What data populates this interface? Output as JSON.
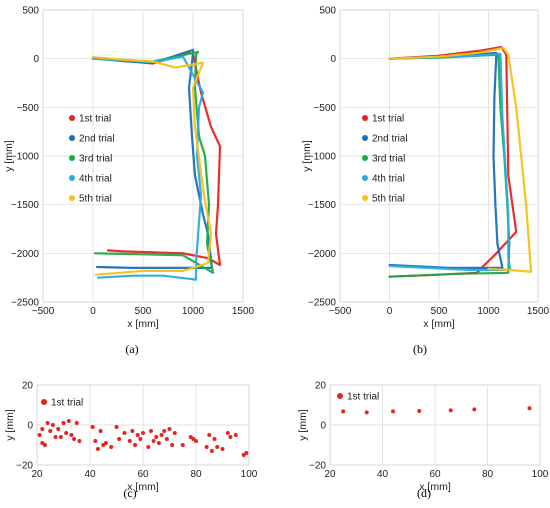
{
  "chart_data": [
    {
      "id": "a",
      "panel_label": "(a)",
      "type": "line",
      "xlabel": "x [mm]",
      "ylabel": "y [mm]",
      "xlim": [
        -500,
        1500
      ],
      "ylim": [
        -2500,
        500
      ],
      "xticks": [
        "−500",
        "0",
        "500",
        "1000",
        "1500"
      ],
      "xtick_values": [
        -500,
        0,
        500,
        1000,
        1500
      ],
      "yticks": [
        "500",
        "0",
        "−500",
        "−1000",
        "−1500",
        "−2000",
        "−2500"
      ],
      "ytick_values": [
        500,
        0,
        -500,
        -1000,
        -1500,
        -2000,
        -2500
      ],
      "grid": true,
      "legend": "left",
      "series": [
        {
          "name": "1st trial",
          "color": "#e8231f",
          "points": [
            [
              0,
              10
            ],
            [
              300,
              -20
            ],
            [
              600,
              -50
            ],
            [
              950,
              60
            ],
            [
              1000,
              50
            ],
            [
              1080,
              -350
            ],
            [
              1180,
              -700
            ],
            [
              1270,
              -900
            ],
            [
              1250,
              -1500
            ],
            [
              1230,
              -1800
            ],
            [
              1270,
              -2120
            ],
            [
              1150,
              -2050
            ],
            [
              900,
              -2000
            ],
            [
              600,
              -1990
            ],
            [
              300,
              -1980
            ],
            [
              150,
              -1970
            ]
          ]
        },
        {
          "name": "2nd trial",
          "color": "#1f6db5",
          "points": [
            [
              0,
              5
            ],
            [
              300,
              -25
            ],
            [
              600,
              -45
            ],
            [
              1000,
              90
            ],
            [
              1000,
              50
            ],
            [
              960,
              -300
            ],
            [
              990,
              -800
            ],
            [
              1020,
              -1200
            ],
            [
              1100,
              -1600
            ],
            [
              1150,
              -1800
            ],
            [
              1190,
              -2150
            ],
            [
              1000,
              -2150
            ],
            [
              700,
              -2150
            ],
            [
              400,
              -2150
            ],
            [
              40,
              -2140
            ]
          ]
        },
        {
          "name": "3rd trial",
          "color": "#1aaa48",
          "points": [
            [
              0,
              0
            ],
            [
              300,
              -20
            ],
            [
              600,
              -30
            ],
            [
              1050,
              70
            ],
            [
              1030,
              40
            ],
            [
              1020,
              -300
            ],
            [
              1060,
              -800
            ],
            [
              1120,
              -1000
            ],
            [
              1160,
              -1500
            ],
            [
              1140,
              -1900
            ],
            [
              1200,
              -2200
            ],
            [
              900,
              -2020
            ],
            [
              500,
              -2010
            ],
            [
              20,
              -2000
            ]
          ]
        },
        {
          "name": "4th trial",
          "color": "#29abe2",
          "points": [
            [
              0,
              0
            ],
            [
              300,
              -15
            ],
            [
              600,
              -35
            ],
            [
              900,
              20
            ],
            [
              1100,
              -350
            ],
            [
              1060,
              -500
            ],
            [
              1040,
              -1000
            ],
            [
              1080,
              -1400
            ],
            [
              1030,
              -2100
            ],
            [
              1030,
              -2270
            ],
            [
              700,
              -2230
            ],
            [
              400,
              -2230
            ],
            [
              50,
              -2250
            ]
          ]
        },
        {
          "name": "5th trial",
          "color": "#f5c017",
          "points": [
            [
              0,
              15
            ],
            [
              300,
              -10
            ],
            [
              600,
              -30
            ],
            [
              820,
              -90
            ],
            [
              1000,
              -60
            ],
            [
              1100,
              -40
            ],
            [
              1000,
              -300
            ],
            [
              1020,
              -700
            ],
            [
              1070,
              -1100
            ],
            [
              1110,
              -1400
            ],
            [
              1180,
              -1800
            ],
            [
              1150,
              -2100
            ],
            [
              900,
              -2180
            ],
            [
              500,
              -2180
            ],
            [
              30,
              -2220
            ]
          ]
        }
      ]
    },
    {
      "id": "b",
      "panel_label": "(b)",
      "type": "line",
      "xlabel": "x [mm]",
      "ylabel": "y [mm]",
      "xlim": [
        -500,
        1500
      ],
      "ylim": [
        -2500,
        500
      ],
      "xticks": [
        "−500",
        "0",
        "500",
        "1000",
        "1500"
      ],
      "xtick_values": [
        -500,
        0,
        500,
        1000,
        1500
      ],
      "yticks": [
        "500",
        "0",
        "−500",
        "−1000",
        "−1500",
        "−2000",
        "−2500"
      ],
      "ytick_values": [
        500,
        0,
        -500,
        -1000,
        -1500,
        -2000,
        -2500
      ],
      "grid": true,
      "legend": "right",
      "series": [
        {
          "name": "1st trial",
          "color": "#e8231f",
          "points": [
            [
              0,
              0
            ],
            [
              500,
              30
            ],
            [
              900,
              80
            ],
            [
              1130,
              120
            ],
            [
              1180,
              40
            ],
            [
              1200,
              -1200
            ],
            [
              1280,
              -1780
            ],
            [
              1080,
              -2000
            ],
            [
              880,
              -2200
            ],
            [
              500,
              -2220
            ],
            [
              0,
              -2240
            ]
          ]
        },
        {
          "name": "2nd trial",
          "color": "#1f6db5",
          "points": [
            [
              0,
              0
            ],
            [
              500,
              20
            ],
            [
              850,
              40
            ],
            [
              1080,
              60
            ],
            [
              1060,
              -400
            ],
            [
              1050,
              -1000
            ],
            [
              1070,
              -1500
            ],
            [
              1090,
              -1900
            ],
            [
              1140,
              -2150
            ],
            [
              600,
              -2150
            ],
            [
              0,
              -2120
            ]
          ]
        },
        {
          "name": "3rd trial",
          "color": "#1aaa48",
          "points": [
            [
              0,
              0
            ],
            [
              500,
              10
            ],
            [
              900,
              30
            ],
            [
              1100,
              40
            ],
            [
              1120,
              -500
            ],
            [
              1160,
              -1000
            ],
            [
              1190,
              -1500
            ],
            [
              1210,
              -1900
            ],
            [
              1200,
              -2200
            ],
            [
              700,
              -2210
            ],
            [
              0,
              -2240
            ]
          ]
        },
        {
          "name": "4th trial",
          "color": "#29abe2",
          "points": [
            [
              0,
              0
            ],
            [
              500,
              15
            ],
            [
              900,
              30
            ],
            [
              1120,
              50
            ],
            [
              1140,
              -600
            ],
            [
              1170,
              -1100
            ],
            [
              1200,
              -1600
            ],
            [
              1200,
              -2050
            ],
            [
              1220,
              -2170
            ],
            [
              800,
              -2170
            ],
            [
              0,
              -2130
            ]
          ]
        },
        {
          "name": "5th trial",
          "color": "#f5c017",
          "points": [
            [
              0,
              0
            ],
            [
              500,
              20
            ],
            [
              900,
              60
            ],
            [
              1150,
              110
            ],
            [
              1200,
              40
            ],
            [
              1280,
              -500
            ],
            [
              1330,
              -1000
            ],
            [
              1380,
              -1500
            ],
            [
              1430,
              -2190
            ],
            [
              1200,
              -2170
            ],
            [
              1000,
              -2160
            ]
          ]
        }
      ]
    },
    {
      "id": "c",
      "panel_label": "(c)",
      "type": "scatter",
      "xlabel": "x [mm]",
      "ylabel": "y [mm]",
      "xlim": [
        20,
        100
      ],
      "ylim": [
        -20,
        20
      ],
      "xticks": [
        "20",
        "40",
        "60",
        "80",
        "100"
      ],
      "xtick_values": [
        20,
        40,
        60,
        80,
        100
      ],
      "yticks": [
        "20",
        "0",
        "−20"
      ],
      "ytick_values": [
        20,
        0,
        -20
      ],
      "grid": true,
      "legend": "top-left",
      "series": [
        {
          "name": "1st trial",
          "color": "#e8231f",
          "x": [
            21,
            22,
            22,
            23,
            24,
            25,
            26,
            27,
            28,
            29,
            30,
            31,
            32,
            33,
            34,
            35,
            36,
            41,
            42,
            43,
            44,
            45,
            46,
            48,
            50,
            51,
            53,
            55,
            56,
            57,
            58,
            59,
            60,
            62,
            63,
            64,
            65,
            66,
            67,
            68,
            69,
            70,
            71,
            72,
            75,
            78,
            79,
            80,
            84,
            85,
            86,
            87,
            88,
            90,
            92,
            93,
            95,
            98,
            99
          ],
          "y": [
            -5,
            -9,
            -2,
            -10,
            1,
            -3,
            0,
            -6,
            -2,
            -6,
            1,
            -4,
            2,
            -5,
            -7,
            1,
            -8,
            -1,
            -8,
            -12,
            -3,
            -10,
            -9,
            -11,
            -1,
            -7,
            -4,
            -8,
            -3,
            -10,
            -5,
            -7,
            -4,
            -11,
            -3,
            -8,
            -6,
            -9,
            -5,
            -3,
            -7,
            -2,
            -10,
            -4,
            -10,
            -6,
            -7,
            -8,
            -11,
            -5,
            -13,
            -7,
            -11,
            -12,
            -4,
            -6,
            -5,
            -15,
            -14
          ]
        }
      ]
    },
    {
      "id": "d",
      "panel_label": "(d)",
      "type": "scatter",
      "xlabel": "x [mm]",
      "ylabel": "y [mm]",
      "xlim": [
        20,
        100
      ],
      "ylim": [
        -20,
        20
      ],
      "xticks": [
        "20",
        "40",
        "60",
        "80",
        "100"
      ],
      "xtick_values": [
        20,
        40,
        60,
        80,
        100
      ],
      "yticks": [
        "20",
        "0",
        "−20"
      ],
      "ytick_values": [
        20,
        0,
        -20
      ],
      "grid": true,
      "legend": "top-left",
      "series": [
        {
          "name": "1st trial",
          "color": "#e8231f",
          "x": [
            25,
            34,
            44,
            54,
            66,
            75,
            96
          ],
          "y": [
            6.8,
            6.3,
            6.8,
            7.0,
            7.3,
            7.8,
            8.4
          ]
        }
      ]
    }
  ]
}
